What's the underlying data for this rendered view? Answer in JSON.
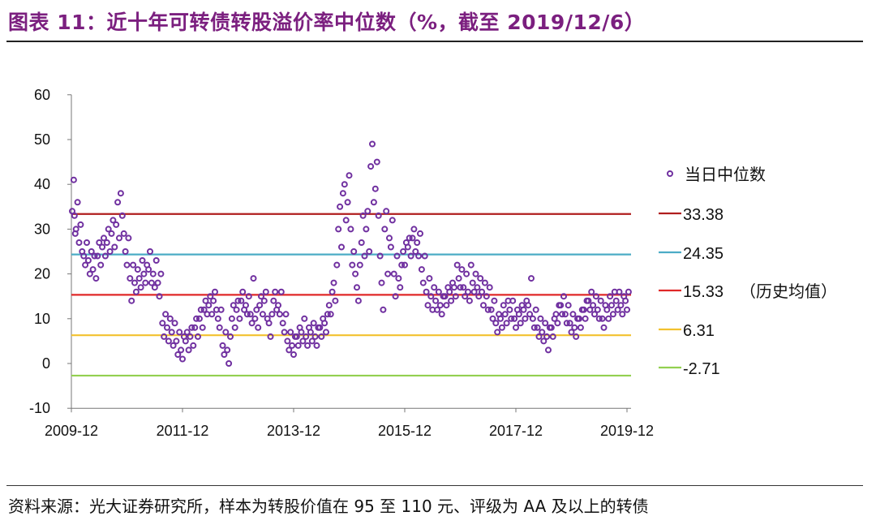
{
  "title": "图表 11：近十年可转债转股溢价率中位数（%，截至 2019/12/6）",
  "source": "资料来源：光大证券研究所，样本为转股价值在 95 至 110 元、评级为 AA 及以上的转债",
  "chart_data": {
    "type": "scatter",
    "title": "",
    "xlabel": "",
    "ylabel": "",
    "ylim": [
      -10,
      60
    ],
    "yticks": [
      "60",
      "50",
      "40",
      "30",
      "20",
      "10",
      "0",
      "-10"
    ],
    "xlim": [
      "2009-12",
      "2019-12"
    ],
    "xticks": [
      "2009-12",
      "2011-12",
      "2013-12",
      "2015-12",
      "2017-12",
      "2019-12"
    ],
    "grid": false,
    "legend_position": "right",
    "marker_color": "#7030A0",
    "scatter_series": {
      "name": "当日中位数",
      "months": [
        "2009-12",
        "2010-01",
        "2010-02",
        "2010-03",
        "2010-04",
        "2010-05",
        "2010-06",
        "2010-07",
        "2010-08",
        "2010-09",
        "2010-10",
        "2010-11",
        "2010-12",
        "2011-01",
        "2011-02",
        "2011-03",
        "2011-04",
        "2011-05",
        "2011-06",
        "2011-07",
        "2011-08",
        "2011-09",
        "2011-10",
        "2011-11",
        "2011-12",
        "2012-01",
        "2012-02",
        "2012-03",
        "2012-04",
        "2012-05",
        "2012-06",
        "2012-07",
        "2012-08",
        "2012-09",
        "2012-10",
        "2012-11",
        "2012-12",
        "2013-01",
        "2013-02",
        "2013-03",
        "2013-04",
        "2013-05",
        "2013-06",
        "2013-07",
        "2013-08",
        "2013-09",
        "2013-10",
        "2013-11",
        "2013-12",
        "2014-01",
        "2014-02",
        "2014-03",
        "2014-04",
        "2014-05",
        "2014-06",
        "2014-07",
        "2014-08",
        "2014-09",
        "2014-10",
        "2014-11",
        "2014-12",
        "2015-01",
        "2015-02",
        "2015-03",
        "2015-04",
        "2015-05",
        "2015-06",
        "2015-07",
        "2015-08",
        "2015-09",
        "2015-10",
        "2015-11",
        "2015-12",
        "2016-01",
        "2016-02",
        "2016-03",
        "2016-04",
        "2016-05",
        "2016-06",
        "2016-07",
        "2016-08",
        "2016-09",
        "2016-10",
        "2016-11",
        "2016-12",
        "2017-01",
        "2017-02",
        "2017-03",
        "2017-04",
        "2017-05",
        "2017-06",
        "2017-07",
        "2017-08",
        "2017-09",
        "2017-10",
        "2017-11",
        "2017-12",
        "2018-01",
        "2018-02",
        "2018-03",
        "2018-04",
        "2018-05",
        "2018-06",
        "2018-07",
        "2018-08",
        "2018-09",
        "2018-10",
        "2018-11",
        "2018-12",
        "2019-01",
        "2019-02",
        "2019-03",
        "2019-04",
        "2019-05",
        "2019-06",
        "2019-07",
        "2019-08",
        "2019-09",
        "2019-10",
        "2019-11",
        "2019-12"
      ],
      "values": [
        [
          34,
          41,
          29
        ],
        [
          33,
          30,
          36
        ],
        [
          27,
          31,
          25
        ],
        [
          24,
          22,
          27
        ],
        [
          23,
          20,
          25
        ],
        [
          21,
          24,
          19
        ],
        [
          24,
          27,
          22
        ],
        [
          26,
          28,
          24
        ],
        [
          27,
          30,
          25
        ],
        [
          29,
          32,
          26
        ],
        [
          31,
          36,
          28
        ],
        [
          38,
          33,
          29
        ],
        [
          25,
          22,
          28
        ],
        [
          19,
          14,
          22
        ],
        [
          18,
          16,
          21
        ],
        [
          19,
          17,
          23
        ],
        [
          20,
          18,
          22
        ],
        [
          21,
          25,
          18
        ],
        [
          20,
          17,
          23
        ],
        [
          18,
          15,
          20
        ],
        [
          9,
          6,
          11
        ],
        [
          8,
          5,
          10
        ],
        [
          7,
          4,
          9
        ],
        [
          5,
          2,
          7
        ],
        [
          3,
          1,
          6
        ],
        [
          5,
          7,
          3
        ],
        [
          6,
          8,
          4
        ],
        [
          8,
          10,
          6
        ],
        [
          10,
          12,
          8
        ],
        [
          12,
          14,
          11
        ],
        [
          13,
          15,
          11
        ],
        [
          14,
          16,
          12
        ],
        [
          10,
          8,
          12
        ],
        [
          4,
          2,
          7
        ],
        [
          3,
          0,
          6
        ],
        [
          10,
          13,
          8
        ],
        [
          12,
          14,
          10
        ],
        [
          14,
          16,
          12
        ],
        [
          13,
          11,
          15
        ],
        [
          11,
          9,
          19
        ],
        [
          10,
          12,
          8
        ],
        [
          13,
          15,
          11
        ],
        [
          14,
          16,
          10
        ],
        [
          9,
          6,
          11
        ],
        [
          14,
          16,
          12
        ],
        [
          13,
          11,
          16
        ],
        [
          9,
          7,
          11
        ],
        [
          5,
          3,
          7
        ],
        [
          4,
          2,
          6
        ],
        [
          6,
          4,
          8
        ],
        [
          7,
          5,
          10
        ],
        [
          6,
          4,
          8
        ],
        [
          7,
          5,
          9
        ],
        [
          6,
          4,
          8
        ],
        [
          8,
          6,
          10
        ],
        [
          9,
          7,
          11
        ],
        [
          13,
          11,
          16
        ],
        [
          18,
          14,
          22
        ],
        [
          30,
          35,
          26
        ],
        [
          38,
          40,
          32
        ],
        [
          36,
          42,
          30
        ],
        [
          22,
          25,
          20
        ],
        [
          17,
          14,
          22
        ],
        [
          27,
          33,
          24
        ],
        [
          30,
          34,
          25
        ],
        [
          44,
          49,
          36
        ],
        [
          39,
          45,
          33
        ],
        [
          24,
          18,
          12
        ],
        [
          30,
          34,
          20
        ],
        [
          28,
          26,
          32
        ],
        [
          20,
          15,
          24
        ],
        [
          19,
          17,
          22
        ],
        [
          25,
          22,
          27
        ],
        [
          26,
          28,
          24
        ],
        [
          28,
          30,
          25
        ],
        [
          27,
          24,
          29
        ],
        [
          21,
          18,
          24
        ],
        [
          16,
          13,
          19
        ],
        [
          15,
          12,
          17
        ],
        [
          14,
          12,
          16
        ],
        [
          13,
          11,
          15
        ],
        [
          15,
          13,
          17
        ],
        [
          16,
          14,
          18
        ],
        [
          17,
          15,
          22
        ],
        [
          19,
          17,
          21
        ],
        [
          17,
          15,
          20
        ],
        [
          16,
          14,
          22
        ],
        [
          18,
          16,
          20
        ],
        [
          17,
          15,
          19
        ],
        [
          16,
          13,
          18
        ],
        [
          15,
          12,
          17
        ],
        [
          12,
          10,
          14
        ],
        [
          9,
          7,
          11
        ],
        [
          10,
          8,
          13
        ],
        [
          11,
          9,
          14
        ],
        [
          12,
          10,
          14
        ],
        [
          10,
          8,
          12
        ],
        [
          11,
          9,
          13
        ],
        [
          12,
          10,
          14
        ],
        [
          13,
          11,
          19
        ],
        [
          10,
          8,
          12
        ],
        [
          8,
          6,
          10
        ],
        [
          7,
          5,
          9
        ],
        [
          6,
          3,
          8
        ],
        [
          8,
          6,
          10
        ],
        [
          11,
          9,
          13
        ],
        [
          13,
          11,
          15
        ],
        [
          11,
          9,
          13
        ],
        [
          9,
          7,
          11
        ],
        [
          8,
          6,
          10
        ],
        [
          10,
          8,
          12
        ],
        [
          12,
          10,
          14
        ],
        [
          14,
          12,
          16
        ],
        [
          13,
          11,
          15
        ],
        [
          12,
          10,
          14
        ],
        [
          10,
          8,
          13
        ],
        [
          12,
          10,
          15
        ],
        [
          13,
          11,
          16
        ],
        [
          14,
          12,
          16
        ],
        [
          13,
          11,
          15
        ],
        [
          14,
          12,
          16
        ]
      ]
    },
    "reference_lines": [
      {
        "label": "33.38",
        "value": 33.38,
        "color": "#B01E1E"
      },
      {
        "label": "24.35",
        "value": 24.35,
        "color": "#4BACC6"
      },
      {
        "label": "15.33",
        "note": "（历史均值）",
        "value": 15.33,
        "color": "#E02828"
      },
      {
        "label": "6.31",
        "value": 6.31,
        "color": "#F2C12E"
      },
      {
        "label": "-2.71",
        "value": -2.71,
        "color": "#92D050"
      }
    ]
  }
}
